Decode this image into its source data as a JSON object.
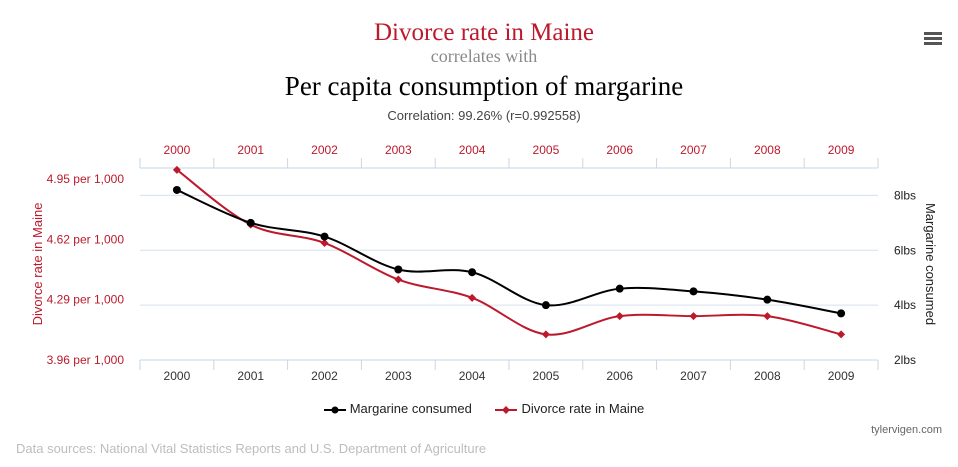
{
  "header": {
    "title_line1": "Divorce rate in Maine",
    "title_line2": "correlates with",
    "title_line3": "Per capita consumption of margarine",
    "correlation": "Correlation: 99.26% (r=0.992558)"
  },
  "menu_icon": "hamburger-menu-icon",
  "colors": {
    "divorce": "#bc1a2c",
    "margarine": "#000000",
    "grid": "#d6e0ec"
  },
  "chart_data": {
    "type": "line",
    "x": [
      "2000",
      "2001",
      "2002",
      "2003",
      "2004",
      "2005",
      "2006",
      "2007",
      "2008",
      "2009"
    ],
    "series": [
      {
        "name": "Margarine consumed",
        "axis": "right",
        "values": [
          8.2,
          7.0,
          6.5,
          5.3,
          5.2,
          4.0,
          4.6,
          4.5,
          4.2,
          3.7
        ]
      },
      {
        "name": "Divorce rate in Maine",
        "axis": "left",
        "values": [
          5.0,
          4.7,
          4.6,
          4.4,
          4.3,
          4.1,
          4.2,
          4.2,
          4.2,
          4.1
        ]
      }
    ],
    "left_axis": {
      "label": "Divorce rate in Maine",
      "ticks": [
        "4.95 per 1,000",
        "4.62 per 1,000",
        "4.29 per 1,000",
        "3.96 per 1,000"
      ],
      "tick_values": [
        4.95,
        4.62,
        4.29,
        3.96
      ],
      "range": [
        3.96,
        5.01
      ]
    },
    "right_axis": {
      "label": "Margarine consumed",
      "ticks": [
        "8lbs",
        "6lbs",
        "4lbs",
        "2lbs"
      ],
      "tick_values": [
        8,
        6,
        4,
        2
      ],
      "range": [
        2,
        9
      ]
    },
    "top_x_ticks": [
      "2000",
      "2001",
      "2002",
      "2003",
      "2004",
      "2005",
      "2006",
      "2007",
      "2008",
      "2009"
    ],
    "grid": true,
    "legend": "bottom-center"
  },
  "legend": {
    "margarine": "Margarine consumed",
    "divorce": "Divorce rate in Maine"
  },
  "footer": {
    "credit": "tylervigen.com",
    "sources": "Data sources: National Vital Statistics Reports and U.S. Department of Agriculture"
  }
}
